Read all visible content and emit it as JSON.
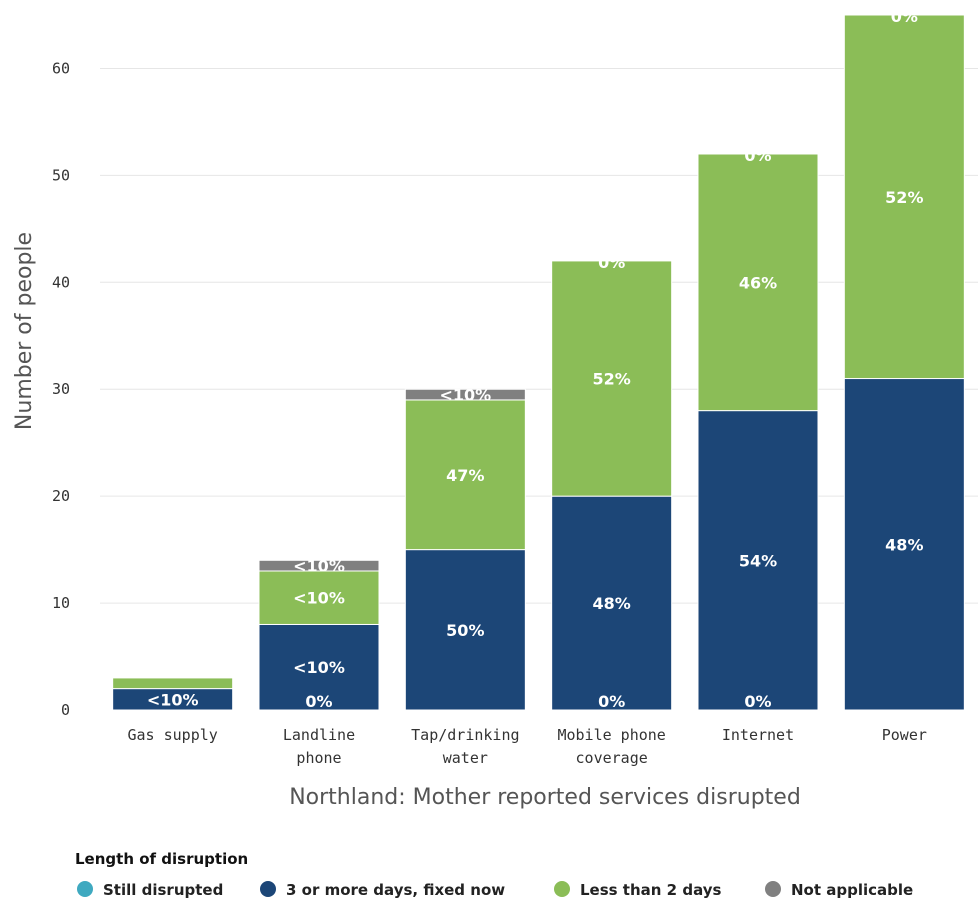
{
  "chart_data": {
    "type": "bar",
    "stacked": true,
    "xlabel": "Northland: Mother reported services disrupted",
    "ylabel": "Number of people",
    "ylim": [
      0,
      65
    ],
    "yticks": [
      0,
      10,
      20,
      30,
      40,
      50,
      60
    ],
    "grid": true,
    "legend_position": "bottom-left",
    "legend_title": "Length of disruption",
    "categories": [
      "Gas supply",
      "Landline phone",
      "Tap/drinking water",
      "Mobile phone coverage",
      "Internet",
      "Power"
    ],
    "category_lines": [
      [
        "Gas supply"
      ],
      [
        "Landline",
        "phone"
      ],
      [
        "Tap/drinking",
        "water"
      ],
      [
        "Mobile phone",
        "coverage"
      ],
      [
        "Internet"
      ],
      [
        "Power"
      ]
    ],
    "series": [
      {
        "name": "Still disrupted",
        "color": "#3fa9c0",
        "values": [
          0,
          0,
          0,
          0,
          0,
          0
        ]
      },
      {
        "name": "3 or more days, fixed now",
        "color": "#1c4677",
        "values": [
          2,
          8,
          15,
          20,
          28,
          31
        ]
      },
      {
        "name": "Less than 2 days",
        "color": "#8bbd57",
        "values": [
          1,
          5,
          14,
          22,
          24,
          34
        ]
      },
      {
        "name": "Not applicable",
        "color": "#808080",
        "values": [
          0,
          1,
          1,
          0,
          0,
          0
        ]
      }
    ],
    "data_labels": [
      {
        "category": 0,
        "series": 1,
        "text": "<10%"
      },
      {
        "category": 1,
        "series": 0,
        "text": "0%"
      },
      {
        "category": 1,
        "series": 1,
        "text": "<10%"
      },
      {
        "category": 1,
        "series": 2,
        "text": "<10%"
      },
      {
        "category": 1,
        "series": 3,
        "text": "<10%"
      },
      {
        "category": 2,
        "series": 1,
        "text": "50%"
      },
      {
        "category": 2,
        "series": 2,
        "text": "47%"
      },
      {
        "category": 2,
        "series": 3,
        "text": "<10%"
      },
      {
        "category": 3,
        "series": 0,
        "text": "0%"
      },
      {
        "category": 3,
        "series": 1,
        "text": "48%"
      },
      {
        "category": 3,
        "series": 2,
        "text": "52%"
      },
      {
        "category": 3,
        "series": 3,
        "text": "0%"
      },
      {
        "category": 4,
        "series": 0,
        "text": "0%"
      },
      {
        "category": 4,
        "series": 1,
        "text": "54%"
      },
      {
        "category": 4,
        "series": 2,
        "text": "46%"
      },
      {
        "category": 4,
        "series": 3,
        "text": "0%"
      },
      {
        "category": 5,
        "series": 1,
        "text": "48%"
      },
      {
        "category": 5,
        "series": 2,
        "text": "52%"
      },
      {
        "category": 5,
        "series": 3,
        "text": "0%"
      }
    ]
  }
}
